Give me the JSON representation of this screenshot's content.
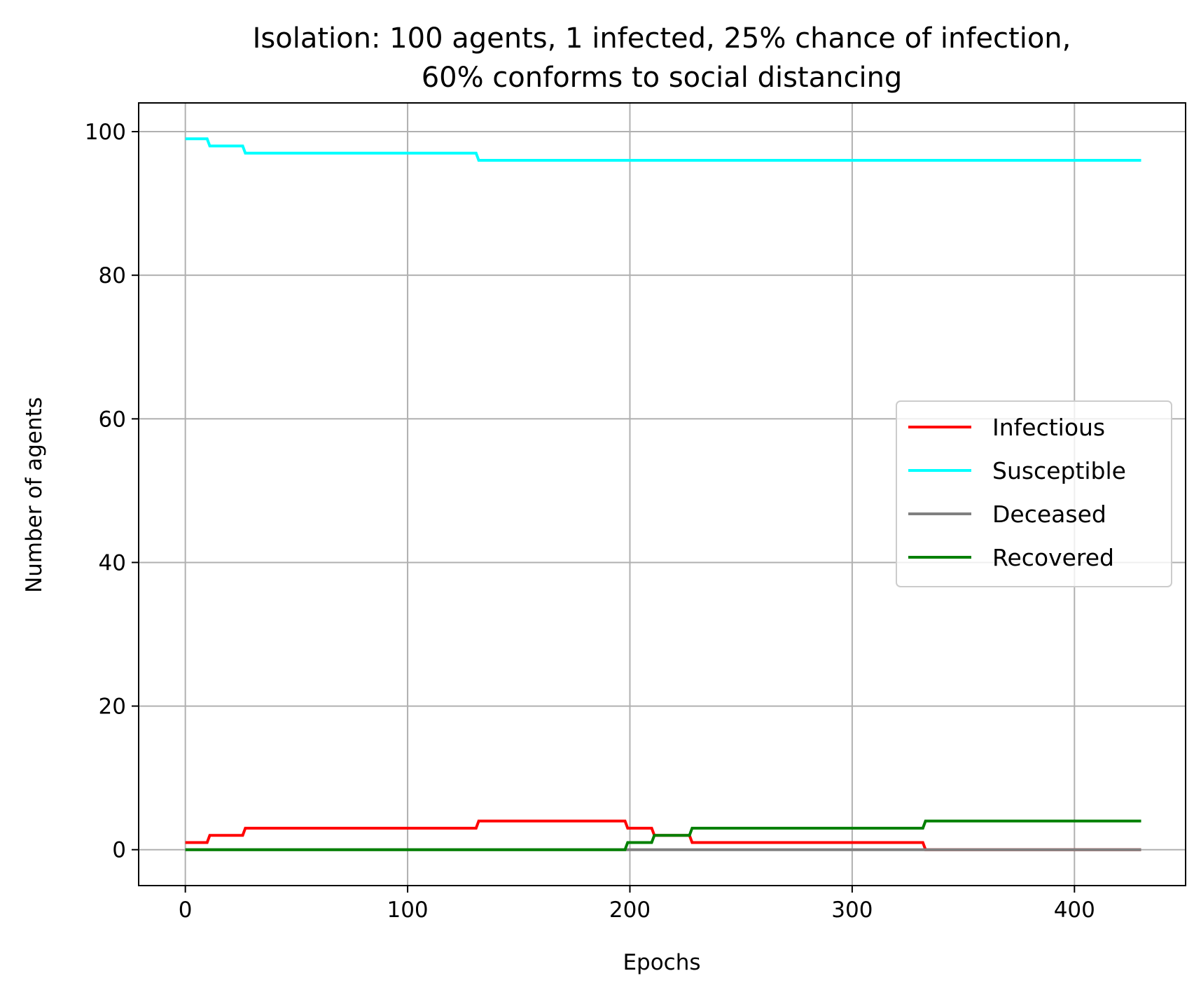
{
  "chart_data": {
    "type": "line",
    "title_lines": [
      "Isolation: 100 agents, 1 infected, 25% chance of infection,",
      "60% conforms to social distancing"
    ],
    "xlabel": "Epochs",
    "ylabel": "Number of agents",
    "xlim": [
      -21,
      450
    ],
    "ylim": [
      -5,
      104
    ],
    "xticks": [
      0,
      100,
      200,
      300,
      400
    ],
    "yticks": [
      0,
      20,
      40,
      60,
      80,
      100
    ],
    "grid": true,
    "legend_position": "center-right",
    "step": true,
    "x_max": 430,
    "series": [
      {
        "name": "Infectious",
        "color": "#ff0000",
        "points": [
          [
            0,
            1
          ],
          [
            11,
            2
          ],
          [
            27,
            3
          ],
          [
            132,
            4
          ],
          [
            199,
            3
          ],
          [
            211,
            2
          ],
          [
            228,
            1
          ],
          [
            333,
            0
          ],
          [
            430,
            0
          ]
        ]
      },
      {
        "name": "Susceptible",
        "color": "#00ffff",
        "points": [
          [
            0,
            99
          ],
          [
            11,
            98
          ],
          [
            27,
            97
          ],
          [
            132,
            96
          ],
          [
            430,
            96
          ]
        ]
      },
      {
        "name": "Deceased",
        "color": "#808080",
        "points": [
          [
            0,
            0
          ],
          [
            430,
            0
          ]
        ]
      },
      {
        "name": "Recovered",
        "color": "#008000",
        "points": [
          [
            0,
            0
          ],
          [
            199,
            1
          ],
          [
            211,
            2
          ],
          [
            228,
            3
          ],
          [
            333,
            4
          ],
          [
            430,
            4
          ]
        ]
      }
    ]
  }
}
